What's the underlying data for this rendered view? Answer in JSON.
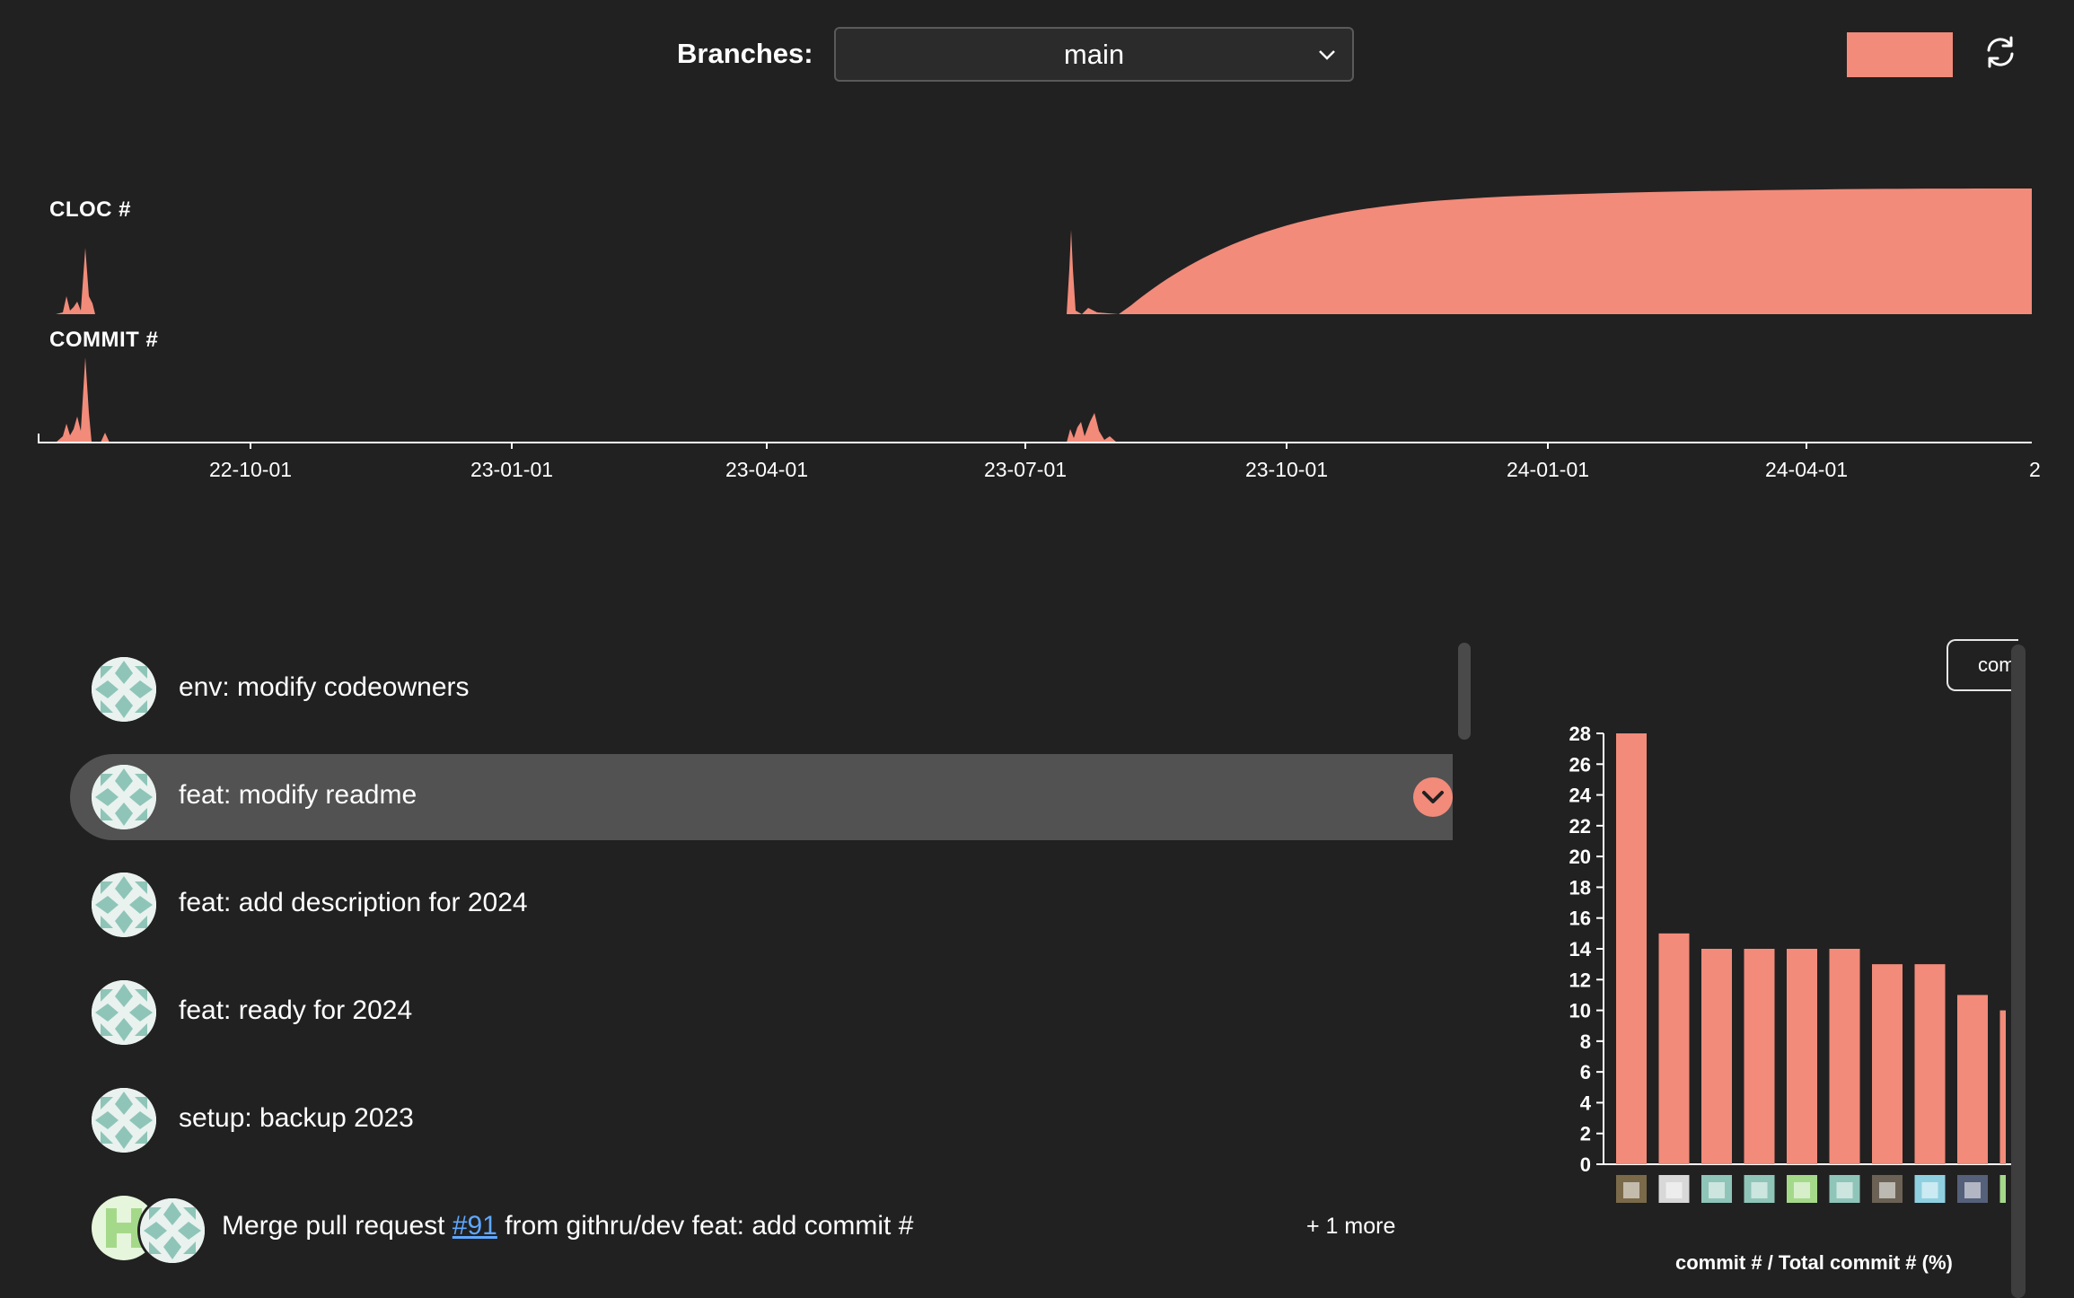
{
  "header": {
    "branches_label": "Branches:",
    "branch_selected": "main",
    "chevron_icon": "chevron-down-icon",
    "theme_color": "#f28b7a",
    "refresh_icon": "refresh-icon"
  },
  "timeline": {
    "cloc_label": "CLOC #",
    "commit_label": "COMMIT #",
    "tick_labels": [
      "22-10-01",
      "23-01-01",
      "23-04-01",
      "23-07-01",
      "23-10-01",
      "24-01-01",
      "24-04-01",
      "2"
    ],
    "fill_color": "#f28b7a"
  },
  "commits": [
    {
      "message": "env: modify codeowners"
    },
    {
      "message": "feat: modify readme",
      "selected": true
    },
    {
      "message": "feat: add description for 2024"
    },
    {
      "message": "feat: ready for 2024"
    },
    {
      "message": "setup: backup 2023"
    },
    {
      "message_prefix": "Merge pull request ",
      "message_link": "#91",
      "message_suffix": " from githru/dev feat: add commit #",
      "more": "+ 1 more"
    }
  ],
  "side_panel": {
    "sort_button_label": "commit #",
    "chart_data": {
      "type": "bar",
      "ylim": [
        0,
        28
      ],
      "ytick_labels": [
        "0",
        "2",
        "4",
        "6",
        "8",
        "10",
        "12",
        "14",
        "16",
        "18",
        "20",
        "22",
        "24",
        "26",
        "28"
      ],
      "values": [
        28,
        15,
        14,
        14,
        14,
        14,
        13,
        13,
        11,
        10
      ],
      "xlabel": "commit # / Total commit # (%)",
      "bar_color": "#f28b7a"
    }
  }
}
